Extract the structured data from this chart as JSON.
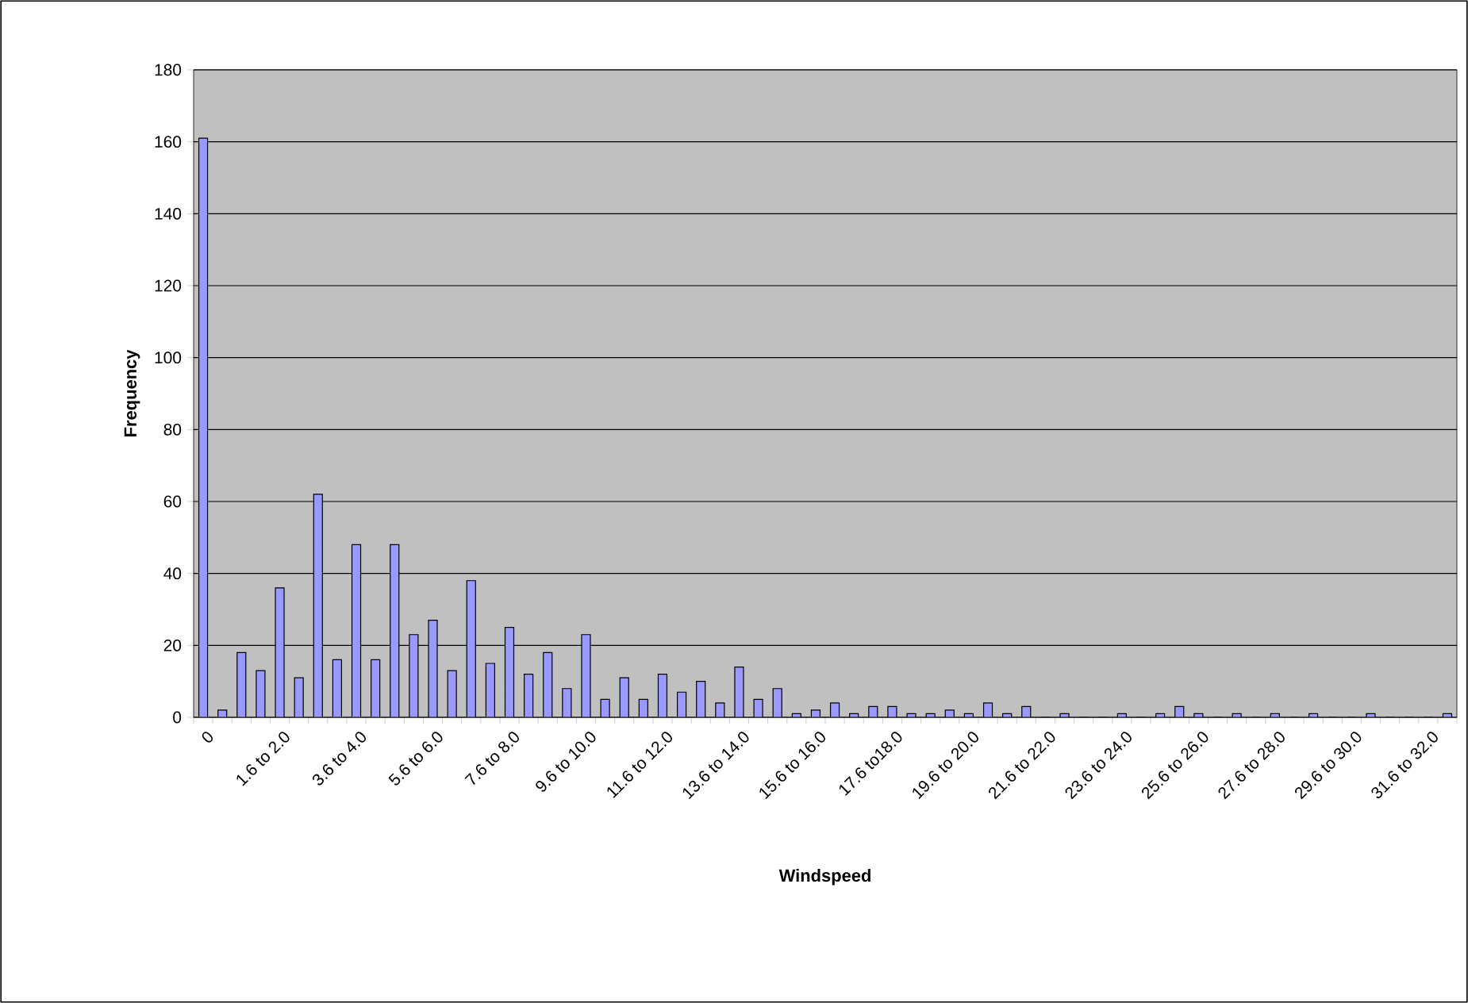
{
  "chart_data": {
    "type": "bar",
    "xlabel": "Windspeed",
    "ylabel": "Frequency",
    "categories": [
      "0",
      null,
      null,
      null,
      "1.6 to 2.0",
      null,
      null,
      null,
      "3.6 to 4.0",
      null,
      null,
      null,
      "5.6 to 6.0",
      null,
      null,
      null,
      "7.6 to 8.0",
      null,
      null,
      null,
      "9.6 to 10.0",
      null,
      null,
      null,
      "11.6 to 12.0",
      null,
      null,
      null,
      "13.6 to 14.0",
      null,
      null,
      null,
      "15.6 to 16.0",
      null,
      null,
      null,
      "17.6 to18.0",
      null,
      null,
      null,
      "19.6 to 20.0",
      null,
      null,
      null,
      "21.6 to 22.0",
      null,
      null,
      null,
      "23.6 to 24.0",
      null,
      null,
      null,
      "25.6 to 26.0",
      null,
      null,
      null,
      "27.6 to 28.0",
      null,
      null,
      null,
      "29.6 to 30.0",
      null,
      null,
      null,
      "31.6 to 32.0",
      null
    ],
    "values": [
      161,
      2,
      18,
      13,
      36,
      11,
      62,
      16,
      48,
      16,
      48,
      23,
      27,
      13,
      38,
      15,
      25,
      12,
      18,
      8,
      23,
      5,
      11,
      5,
      12,
      7,
      10,
      4,
      14,
      5,
      8,
      1,
      2,
      4,
      1,
      3,
      3,
      1,
      1,
      2,
      1,
      4,
      1,
      3,
      0,
      1,
      0,
      0,
      1,
      0,
      1,
      3,
      1,
      0,
      1,
      0,
      1,
      0,
      1,
      0,
      0,
      1,
      0,
      0,
      0,
      1
    ],
    "color": "#9999ff",
    "ylim": [
      0,
      180
    ],
    "yticks": [
      0,
      20,
      40,
      60,
      80,
      100,
      120,
      140,
      160,
      180
    ],
    "grid": "y"
  }
}
